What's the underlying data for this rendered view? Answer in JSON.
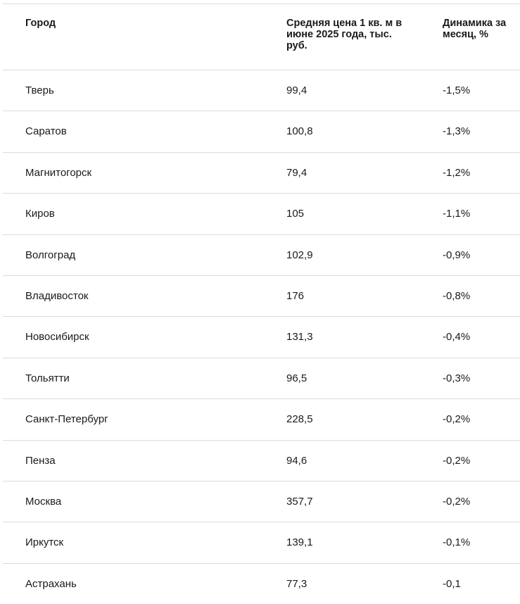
{
  "table": {
    "headers": [
      "Город",
      "Средняя цена 1 кв. м в июне 2025 года, тыс. руб.",
      "Динамика за месяц, %"
    ],
    "rows": [
      [
        "Тверь",
        "99,4",
        "-1,5%"
      ],
      [
        "Саратов",
        "100,8",
        "-1,3%"
      ],
      [
        "Магнитогорск",
        "79,4",
        "-1,2%"
      ],
      [
        "Киров",
        "105",
        "-1,1%"
      ],
      [
        "Волгоград",
        "102,9",
        "-0,9%"
      ],
      [
        "Владивосток",
        "176",
        "-0,8%"
      ],
      [
        "Новосибирск",
        "131,3",
        "-0,4%"
      ],
      [
        "Тольятти",
        "96,5",
        "-0,3%"
      ],
      [
        "Санкт-Петербург",
        "228,5",
        "-0,2%"
      ],
      [
        "Пенза",
        "94,6",
        "-0,2%"
      ],
      [
        "Москва",
        "357,7",
        "-0,2%"
      ],
      [
        "Иркутск",
        "139,1",
        "-0,1%"
      ],
      [
        "Астрахань",
        "77,3",
        "-0,1"
      ]
    ]
  }
}
